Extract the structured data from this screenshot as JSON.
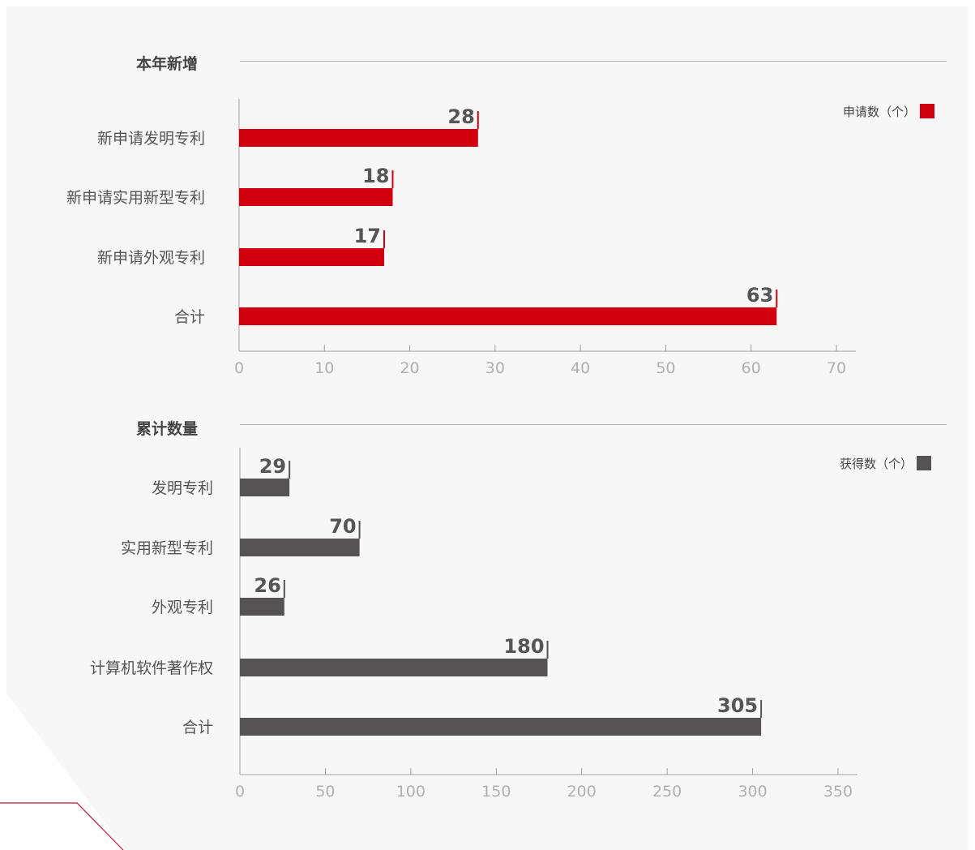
{
  "colors": {
    "background": "#f6f7f6",
    "new_bar": "#d2000f",
    "total_bar": "#555353",
    "axis": "#a0a0a0",
    "decor_line": "#c8102e"
  },
  "sections": [
    {
      "title": "本年新增"
    },
    {
      "title": "累计数量"
    }
  ],
  "chart_data": [
    {
      "type": "bar",
      "orientation": "horizontal",
      "categories": [
        "新申请发明专利",
        "新申请实用新型专利",
        "新申请外观专利",
        "合计"
      ],
      "series": [
        {
          "name": "申请数（个）",
          "values": [
            28,
            18,
            17,
            63
          ]
        }
      ],
      "data_labels": [
        "28",
        "18",
        "17",
        "63"
      ],
      "xlim": [
        0,
        70
      ],
      "xticks": [
        0,
        10,
        20,
        30,
        40,
        50,
        60,
        70
      ],
      "xtick_labels": [
        "0",
        "10",
        "20",
        "30",
        "40",
        "50",
        "60",
        "70"
      ],
      "legend": "top-right",
      "grid": false
    },
    {
      "type": "bar",
      "orientation": "horizontal",
      "categories": [
        "发明专利",
        "实用新型专利",
        "外观专利",
        "计算机软件著作权",
        "合计"
      ],
      "series": [
        {
          "name": "获得数（个）",
          "values": [
            29,
            70,
            26,
            180,
            305
          ]
        }
      ],
      "data_labels": [
        "29",
        "70",
        "26",
        "180",
        "305"
      ],
      "xlim": [
        0,
        350
      ],
      "xticks": [
        0,
        50,
        100,
        150,
        200,
        250,
        300,
        350
      ],
      "xtick_labels": [
        "0",
        "50",
        "100",
        "150",
        "200",
        "250",
        "300",
        "350"
      ],
      "legend": "top-right",
      "grid": false
    }
  ]
}
